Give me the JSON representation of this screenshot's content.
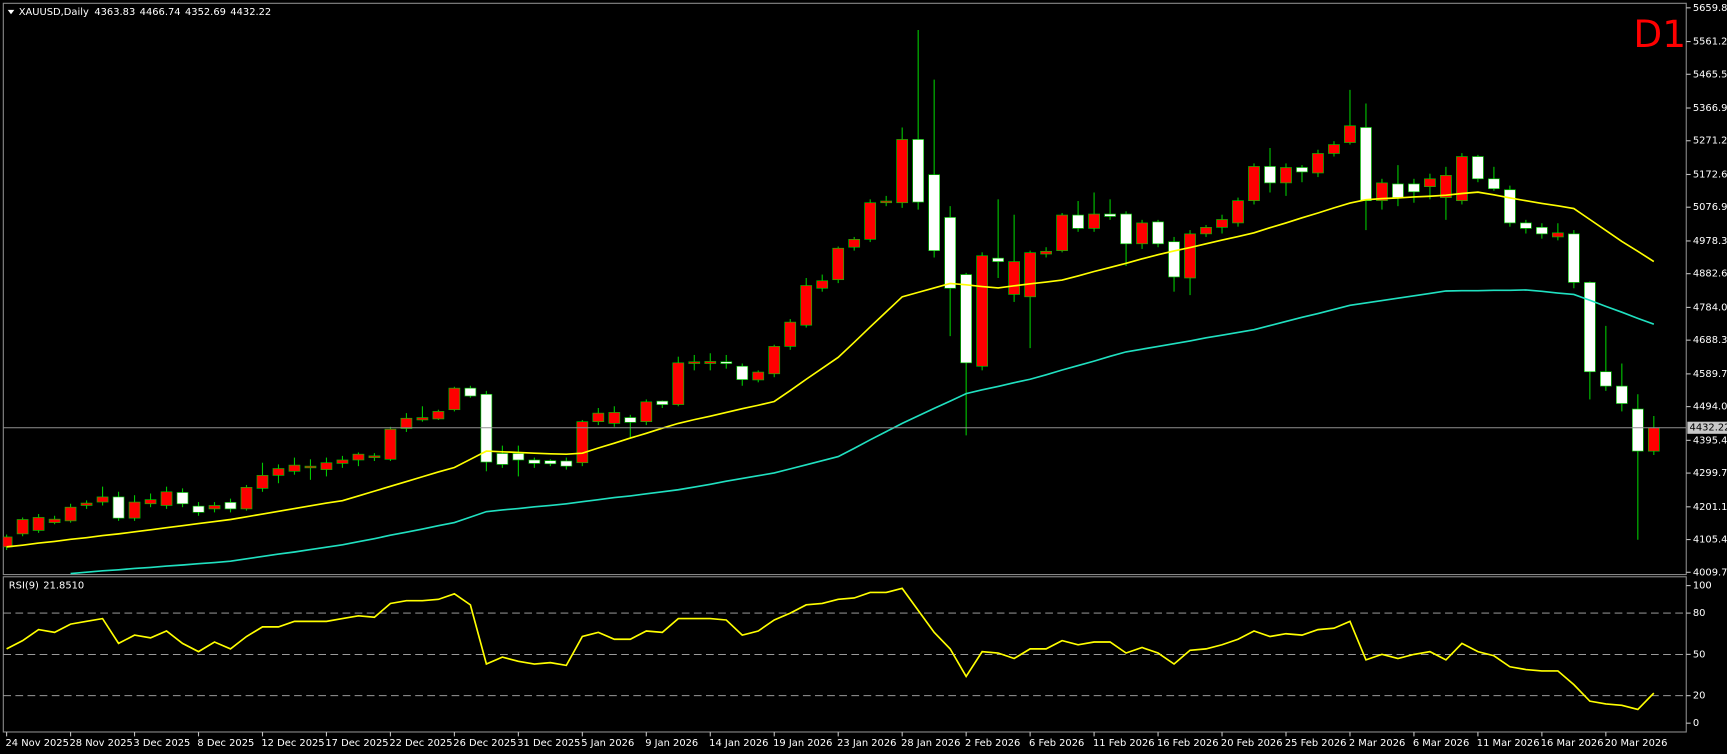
{
  "chart_data": [
    {
      "type": "candlestick",
      "title": "XAUUSD,Daily",
      "timeframe": "D1",
      "categories": [
        "24 Nov 2025",
        null,
        null,
        null,
        "28 Nov 2025",
        null,
        null,
        null,
        "3 Dec 2025",
        null,
        null,
        null,
        "8 Dec 2025",
        null,
        null,
        null,
        "12 Dec 2025",
        null,
        null,
        null,
        "17 Dec 2025",
        null,
        null,
        null,
        "22 Dec 2025",
        null,
        null,
        null,
        "26 Dec 2025",
        null,
        null,
        null,
        "31 Dec 2025",
        null,
        null,
        null,
        "5 Jan 2026",
        null,
        null,
        null,
        "9 Jan 2026",
        null,
        null,
        null,
        "14 Jan 2026",
        null,
        null,
        null,
        "19 Jan 2026",
        null,
        null,
        null,
        "23 Jan 2026",
        null,
        null,
        null,
        "28 Jan 2026",
        null,
        null,
        null,
        "2 Feb 2026",
        null,
        null,
        null,
        "6 Feb 2026",
        null,
        null,
        null,
        "11 Feb 2026",
        null,
        null,
        null,
        "16 Feb 2026",
        null,
        null,
        null,
        "20 Feb 2026",
        null,
        null,
        null,
        "25 Feb 2026",
        null,
        null,
        null,
        "2 Mar 2026",
        null,
        null,
        null,
        "6 Mar 2026",
        null,
        null,
        null,
        "11 Mar 2026",
        null,
        null,
        null,
        "16 Mar 2026",
        null,
        null,
        null,
        "20 Mar 2026",
        null,
        null,
        null
      ],
      "open": [
        4084,
        4122,
        4132,
        4155,
        4160,
        4205,
        4215,
        4230,
        4168,
        4210,
        4205,
        4243,
        4203,
        4195,
        4214,
        4195,
        4255,
        4293,
        4305,
        4315,
        4310,
        4328,
        4338,
        4345,
        4340,
        4430,
        4455,
        4458,
        4485,
        4548,
        4530,
        4357,
        4357,
        4338,
        4336,
        4335,
        4330,
        4450,
        4445,
        4462,
        4450,
        4510,
        4500,
        4620,
        4620,
        4625,
        4612,
        4572,
        4590,
        4670,
        4732,
        4840,
        4865,
        4960,
        4983,
        5090,
        5090,
        5275,
        5172,
        5047,
        4880,
        4612,
        4928,
        4822,
        4815,
        4940,
        4950,
        5054,
        5015,
        5057,
        5057,
        4970,
        5034,
        4976,
        4870,
        4999,
        5018,
        5031,
        5096,
        5196,
        5148,
        5193,
        5177,
        5234,
        5266,
        5310,
        5096,
        5145,
        5145,
        5137,
        5105,
        5096,
        5225,
        5160,
        5128,
        5031,
        5018,
        4990,
        4999,
        4857,
        4596,
        4554,
        4487,
        4363.83
      ],
      "high": [
        4120,
        4170,
        4180,
        4175,
        4210,
        4220,
        4260,
        4245,
        4235,
        4240,
        4260,
        4255,
        4215,
        4215,
        4225,
        4265,
        4330,
        4325,
        4345,
        4340,
        4345,
        4350,
        4360,
        4358,
        4435,
        4475,
        4495,
        4485,
        4552,
        4555,
        4540,
        4380,
        4380,
        4345,
        4340,
        4345,
        4455,
        4490,
        4495,
        4470,
        4515,
        4512,
        4640,
        4645,
        4650,
        4645,
        4620,
        4600,
        4675,
        4750,
        4870,
        4880,
        4962,
        4990,
        5100,
        5110,
        5310,
        5595,
        5450,
        5080,
        4885,
        4945,
        5100,
        5055,
        4950,
        4960,
        5060,
        5095,
        5120,
        5100,
        5065,
        5040,
        5040,
        4990,
        5010,
        5025,
        5055,
        5105,
        5205,
        5250,
        5205,
        5200,
        5245,
        5270,
        5420,
        5380,
        5160,
        5200,
        5160,
        5175,
        5195,
        5235,
        5230,
        5195,
        5140,
        5040,
        5030,
        5030,
        5010,
        4860,
        4730,
        4620,
        4530,
        4466.74
      ],
      "low": [
        4075,
        4115,
        4125,
        4150,
        4155,
        4195,
        4205,
        4160,
        4160,
        4200,
        4195,
        4200,
        4175,
        4185,
        4185,
        4190,
        4245,
        4270,
        4295,
        4280,
        4290,
        4315,
        4320,
        4335,
        4335,
        4420,
        4450,
        4455,
        4480,
        4520,
        4305,
        4315,
        4290,
        4315,
        4320,
        4310,
        4320,
        4440,
        4435,
        4405,
        4440,
        4490,
        4495,
        4600,
        4600,
        4605,
        4555,
        4565,
        4580,
        4660,
        4725,
        4830,
        4855,
        4950,
        4975,
        5080,
        5075,
        5070,
        4930,
        4700,
        4410,
        4600,
        4870,
        4800,
        4665,
        4930,
        4945,
        5005,
        5005,
        5040,
        4905,
        4955,
        4960,
        4830,
        4820,
        4990,
        5000,
        5020,
        5085,
        5120,
        5110,
        5150,
        5165,
        5225,
        5260,
        5010,
        5070,
        5080,
        5090,
        5100,
        5040,
        5085,
        5150,
        5125,
        5020,
        5000,
        4985,
        4980,
        4840,
        4515,
        4540,
        4480,
        4105,
        4352.69
      ],
      "close": [
        4113,
        4164,
        4170,
        4165,
        4200,
        4212,
        4230,
        4168,
        4215,
        4222,
        4245,
        4210,
        4185,
        4205,
        4195,
        4258,
        4293,
        4313,
        4323,
        4320,
        4330,
        4338,
        4355,
        4350,
        4428,
        4460,
        4462,
        4480,
        4548,
        4525,
        4332,
        4325,
        4338,
        4328,
        4327,
        4320,
        4450,
        4475,
        4477,
        4448,
        4508,
        4500,
        4622,
        4625,
        4626,
        4620,
        4573,
        4595,
        4670,
        4741,
        4848,
        4862,
        4957,
        4983,
        5090,
        5095,
        5275,
        5092,
        4950,
        4840,
        4622,
        4935,
        4918,
        4918,
        4944,
        4948,
        5054,
        5015,
        5057,
        5050,
        4970,
        5031,
        4970,
        4873,
        4999,
        5018,
        5041,
        5096,
        5196,
        5148,
        5193,
        5180,
        5234,
        5260,
        5315,
        5096,
        5148,
        5105,
        5122,
        5160,
        5170,
        5225,
        5160,
        5131,
        5031,
        5015,
        4999,
        5002,
        4857,
        4596,
        4554,
        4503,
        4364,
        4432.22
      ],
      "up_color": "#ff0000",
      "down_color": "#ffffff",
      "wick_color": "#00c800",
      "series": [
        {
          "color": "#ffff00",
          "values": [
            4084,
            4089,
            4095,
            4100,
            4106,
            4111,
            4117,
            4122,
            4128,
            4134,
            4140,
            4146,
            4152,
            4158,
            4164,
            4172,
            4180,
            4188,
            4196,
            4204,
            4212,
            4219,
            4233,
            4247,
            4261,
            4275,
            4289,
            4303,
            4316,
            4340,
            4364,
            4362,
            4360,
            4358,
            4356,
            4355,
            4358,
            4373,
            4387,
            4402,
            4416,
            4431,
            4445,
            4456,
            4466,
            4477,
            4488,
            4498,
            4509,
            4541,
            4574,
            4606,
            4638,
            4682,
            4727,
            4771,
            4815,
            4828,
            4841,
            4854,
            4850,
            4845,
            4841,
            4847,
            4853,
            4858,
            4864,
            4876,
            4889,
            4901,
            4913,
            4926,
            4938,
            4949,
            4959,
            4970,
            4981,
            4991,
            5002,
            5017,
            5031,
            5046,
            5060,
            5075,
            5089,
            5099,
            5102,
            5104,
            5107,
            5109,
            5112,
            5117,
            5121,
            5113,
            5104,
            5096,
            5088,
            5081,
            5073,
            5041,
            5009,
            4977,
            4948,
            4918
          ]
        },
        {
          "color": "#20e0c0",
          "values": [
            null,
            null,
            null,
            null,
            4006,
            4010,
            4014,
            4017,
            4021,
            4024,
            4028,
            4031,
            4035,
            4038,
            4042,
            4049,
            4056,
            4063,
            4069,
            4076,
            4083,
            4090,
            4099,
            4108,
            4118,
            4127,
            4136,
            4146,
            4155,
            4171,
            4187,
            4192,
            4196,
            4201,
            4205,
            4210,
            4216,
            4222,
            4228,
            4233,
            4239,
            4245,
            4251,
            4259,
            4267,
            4276,
            4284,
            4292,
            4300,
            4312,
            4324,
            4336,
            4348,
            4372,
            4397,
            4421,
            4445,
            4467,
            4489,
            4510,
            4532,
            4543,
            4553,
            4564,
            4574,
            4587,
            4601,
            4614,
            4627,
            4641,
            4654,
            4662,
            4670,
            4678,
            4686,
            4695,
            4703,
            4711,
            4719,
            4731,
            4743,
            4755,
            4766,
            4778,
            4790,
            4797,
            4804,
            4811,
            4818,
            4825,
            4832,
            4833,
            4833,
            4834,
            4834,
            4835,
            4831,
            4826,
            4822,
            4805,
            4787,
            4770,
            4752,
            4735
          ]
        }
      ],
      "ylim": [
        4003,
        5673
      ],
      "yticks": [
        {
          "value": 5659.8,
          "label": "5659.80"
        },
        {
          "value": 5561.2,
          "label": "5561.20"
        },
        {
          "value": 5465.5,
          "label": "5465.50"
        },
        {
          "value": 5366.9,
          "label": "5366.90"
        },
        {
          "value": 5271.2,
          "label": "5271.20"
        },
        {
          "value": 5172.6,
          "label": "5172.60"
        },
        {
          "value": 5076.9,
          "label": "5076.90"
        },
        {
          "value": 4978.3,
          "label": "4978.30"
        },
        {
          "value": 4882.6,
          "label": "4882.60"
        },
        {
          "value": 4784,
          "label": "4784.00"
        },
        {
          "value": 4688.3,
          "label": "4688.30"
        },
        {
          "value": 4589.7,
          "label": "4589.70"
        },
        {
          "value": 4494,
          "label": "4494.00"
        },
        {
          "value": 4395.4,
          "label": "4395.40"
        },
        {
          "value": 4299.7,
          "label": "4299.70"
        },
        {
          "value": 4201.1,
          "label": "4201.10"
        },
        {
          "value": 4105.4,
          "label": "4105.40"
        },
        {
          "value": 4009.7,
          "label": "4009.70"
        }
      ],
      "last_price_line": true
    },
    {
      "type": "line",
      "title": "RSI(9)",
      "current_label": "21.8510",
      "color": "#ffff00",
      "values": [
        54,
        60,
        68,
        66,
        72,
        74,
        76,
        58,
        64,
        62,
        67,
        58,
        52,
        59,
        54,
        63,
        70,
        70,
        74,
        74,
        74,
        76,
        78,
        77,
        87,
        89,
        89,
        90,
        94,
        86,
        43,
        48,
        45,
        43,
        44,
        42,
        63,
        66,
        61,
        61,
        67,
        66,
        76,
        76,
        76,
        75,
        64,
        67,
        75,
        80,
        86,
        87,
        90,
        91,
        95,
        95,
        98,
        82,
        66,
        54,
        34,
        52,
        51,
        47,
        54,
        54,
        60,
        57,
        59,
        59,
        51,
        55,
        51,
        43,
        53,
        54,
        57,
        61,
        67,
        63,
        65,
        64,
        68,
        69,
        74,
        46,
        50,
        47,
        50,
        52,
        46,
        58,
        52,
        49,
        41,
        39,
        38,
        38,
        28,
        16,
        14,
        13,
        10,
        21.851
      ],
      "ylim": [
        -6.4,
        106.4
      ],
      "yticks": [
        100,
        80,
        50,
        20,
        0
      ],
      "levels": [
        80,
        50,
        20
      ]
    }
  ]
}
